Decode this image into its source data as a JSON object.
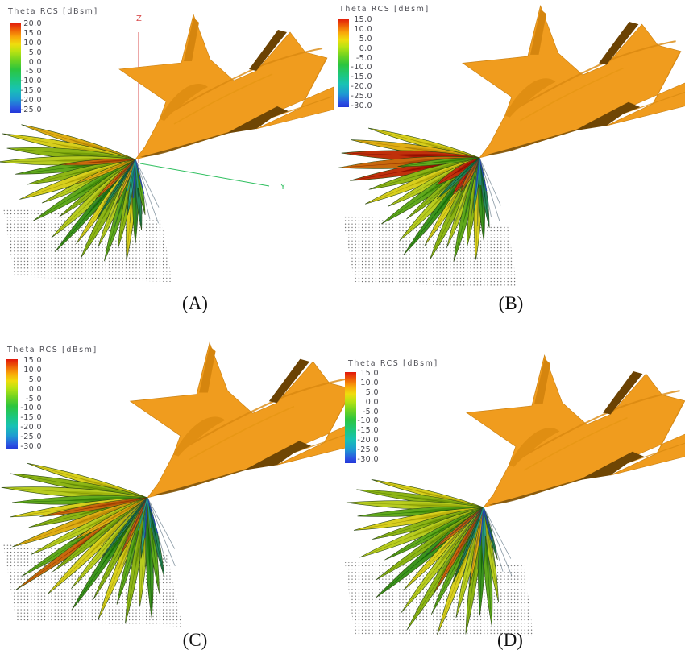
{
  "figure": {
    "background": "#ffffff",
    "description": "Four-panel 3D RCS simulation figure of a fighter aircraft"
  },
  "colorbar": {
    "gradient": [
      "#e1170b 0%",
      "#ee5f07 8%",
      "#f9a80a 16%",
      "#f0dc0d 24%",
      "#b9e312 32%",
      "#6ed321 42%",
      "#2cc53e 52%",
      "#1dc77e 64%",
      "#18c2b4 74%",
      "#1e9ad2 85%",
      "#2b52e2 95%",
      "#2337d8 100%"
    ]
  },
  "colors": {
    "aircraft_orange": "#f09c1e",
    "aircraft_shadow": "#7a4d05",
    "axis_z": "#d94f4f",
    "axis_y": "#2fbf5f",
    "ground_dot": "#5a5a5a"
  },
  "palette": [
    "#b8cc20",
    "#8db515",
    "#60a81c",
    "#3c941d",
    "#d8cf1d",
    "#dfae14",
    "#c8690d",
    "#bf300b",
    "#27865a",
    "#2fa98d"
  ],
  "panels": [
    {
      "id": "A",
      "label": "(A)",
      "legend": {
        "title": "Theta RCS [dBsm]",
        "ticks": [
          "20.0",
          "15.0",
          "10.0",
          "5.0",
          "0.0",
          "-5.0",
          "-10.0",
          "-15.0",
          "-20.0",
          "-25.0"
        ]
      },
      "axis_labels": {
        "z": "Z",
        "y": "Y"
      },
      "scene": {
        "nose": [
          168,
          198
        ],
        "jetScale": 1.0,
        "fanScale": 1.0,
        "axes": true,
        "ground": "4,258 200,272 214,350 18,344",
        "lobes": [
          [
            197,
            148,
            8,
            5
          ],
          [
            191,
            168,
            10,
            4
          ],
          [
            185,
            160,
            12,
            1
          ],
          [
            179,
            170,
            11,
            0
          ],
          [
            173,
            150,
            10,
            2
          ],
          [
            167,
            138,
            10,
            1
          ],
          [
            161,
            152,
            11,
            4
          ],
          [
            155,
            128,
            9,
            0
          ],
          [
            149,
            148,
            10,
            2
          ],
          [
            143,
            118,
            8,
            1
          ],
          [
            137,
            142,
            10,
            0
          ],
          [
            131,
            152,
            9,
            3
          ],
          [
            125,
            128,
            8,
            4
          ],
          [
            119,
            140,
            10,
            1
          ],
          [
            113,
            118,
            8,
            0
          ],
          [
            107,
            132,
            9,
            2
          ],
          [
            101,
            112,
            8,
            1
          ],
          [
            95,
            126,
            9,
            4
          ],
          [
            90,
            104,
            7,
            3
          ],
          [
            85,
            88,
            6,
            8
          ],
          [
            80,
            70,
            5,
            2
          ],
          [
            176,
            95,
            6,
            6
          ],
          [
            158,
            84,
            5,
            5
          ],
          [
            135,
            70,
            5,
            6
          ],
          [
            113,
            60,
            4,
            5
          ],
          [
            123,
            88,
            4,
            8
          ],
          [
            98,
            70,
            4,
            9
          ]
        ],
        "spokes": {
          "from": 64,
          "to": 138,
          "step": 6.2,
          "len": 92,
          "color": "rgba(40,70,90,0.55)"
        },
        "accents": [
          [
            76,
            44,
            "#2344ae"
          ],
          [
            85,
            36,
            "#1d9a8c"
          ],
          [
            93,
            48,
            "#2344ae"
          ],
          [
            104,
            40,
            "#1d9a8c"
          ]
        ]
      }
    },
    {
      "id": "B",
      "label": "(B)",
      "legend": {
        "title": "Theta RCS [dBsm]",
        "ticks": [
          "15.0",
          "10.0",
          "5.0",
          "0.0",
          "-5.0",
          "-10.0",
          "-15.0",
          "-20.0",
          "-25.0",
          "-30.0"
        ]
      },
      "axis_labels": null,
      "scene": {
        "nose": [
          180,
          196
        ],
        "jetScale": 1.05,
        "fanScale": 1.02,
        "axes": false,
        "ground": "10,268 215,280 227,358 25,350",
        "lobes": [
          [
            195,
            140,
            8,
            4
          ],
          [
            188,
            158,
            10,
            5
          ],
          [
            182,
            168,
            12,
            7
          ],
          [
            176,
            172,
            12,
            6
          ],
          [
            170,
            160,
            11,
            7
          ],
          [
            164,
            140,
            10,
            1
          ],
          [
            158,
            150,
            10,
            4
          ],
          [
            152,
            126,
            9,
            0
          ],
          [
            146,
            144,
            10,
            2
          ],
          [
            140,
            116,
            8,
            1
          ],
          [
            134,
            140,
            10,
            0
          ],
          [
            128,
            150,
            9,
            3
          ],
          [
            122,
            126,
            8,
            4
          ],
          [
            116,
            138,
            10,
            1
          ],
          [
            110,
            116,
            8,
            0
          ],
          [
            104,
            130,
            9,
            2
          ],
          [
            98,
            110,
            8,
            1
          ],
          [
            92,
            124,
            9,
            4
          ],
          [
            87,
            102,
            7,
            3
          ],
          [
            82,
            86,
            6,
            8
          ],
          [
            148,
            62,
            9,
            7
          ],
          [
            126,
            56,
            8,
            7
          ],
          [
            119,
            48,
            6,
            6
          ],
          [
            174,
            100,
            6,
            2
          ],
          [
            136,
            72,
            5,
            8
          ],
          [
            96,
            68,
            4,
            9
          ]
        ],
        "spokes": {
          "from": 66,
          "to": 136,
          "step": 6.4,
          "len": 90,
          "color": "rgba(40,70,90,0.55)"
        },
        "accents": [
          [
            78,
            42,
            "#2344ae"
          ],
          [
            88,
            34,
            "#1d9a8c"
          ],
          [
            96,
            46,
            "#2344ae"
          ]
        ]
      }
    },
    {
      "id": "C",
      "label": "(C)",
      "legend": {
        "title": "Theta RCS [dBsm]",
        "ticks": [
          "15.0",
          "10.0",
          "5.0",
          "0.0",
          "-5.0",
          "-10.0",
          "-15.0",
          "-20.0",
          "-25.0",
          "-30.0"
        ]
      },
      "axis_labels": null,
      "scene": {
        "nose": [
          183,
          198
        ],
        "jetScale": 1.07,
        "fanScale": 1.15,
        "axes": false,
        "ground": "4,256 208,268 226,358 20,350",
        "lobes": [
          [
            196,
            135,
            8,
            4
          ],
          [
            190,
            150,
            10,
            1
          ],
          [
            184,
            158,
            11,
            0
          ],
          [
            178,
            146,
            10,
            2
          ],
          [
            172,
            150,
            10,
            4
          ],
          [
            166,
            132,
            9,
            1
          ],
          [
            160,
            155,
            10,
            5
          ],
          [
            154,
            140,
            9,
            0
          ],
          [
            148,
            160,
            10,
            2
          ],
          [
            145,
            174,
            9,
            6
          ],
          [
            142,
            130,
            9,
            1
          ],
          [
            136,
            150,
            10,
            4
          ],
          [
            130,
            128,
            8,
            0
          ],
          [
            124,
            146,
            9,
            3
          ],
          [
            118,
            124,
            8,
            1
          ],
          [
            112,
            142,
            9,
            4
          ],
          [
            106,
            120,
            8,
            2
          ],
          [
            100,
            138,
            9,
            1
          ],
          [
            94,
            118,
            8,
            0
          ],
          [
            88,
            130,
            9,
            3
          ],
          [
            83,
            104,
            7,
            2
          ],
          [
            78,
            88,
            6,
            8
          ],
          [
            170,
            118,
            7,
            6
          ],
          [
            150,
            95,
            6,
            5
          ],
          [
            115,
            70,
            5,
            6
          ],
          [
            127,
            84,
            4,
            8
          ],
          [
            96,
            66,
            4,
            9
          ]
        ],
        "spokes": {
          "from": 62,
          "to": 140,
          "step": 6.0,
          "len": 100,
          "color": "rgba(40,70,90,0.55)"
        },
        "accents": [
          [
            74,
            46,
            "#2344ae"
          ],
          [
            84,
            38,
            "#1d9a8c"
          ],
          [
            94,
            50,
            "#2344ae"
          ],
          [
            106,
            42,
            "#1d9a8c"
          ]
        ]
      }
    },
    {
      "id": "D",
      "label": "(D)",
      "legend": {
        "title": "Theta RCS [dBsm]",
        "ticks": [
          "15.0",
          "10.0",
          "5.0",
          "0.0",
          "-5.0",
          "-10.0",
          "-15.0",
          "-20.0",
          "-25.0",
          "-30.0"
        ]
      },
      "axis_labels": null,
      "scene": {
        "nose": [
          185,
          210
        ],
        "jetScale": 1.05,
        "fanScale": 1.12,
        "axes": false,
        "ground": "13,278 235,280 247,370 25,368",
        "lobes": [
          [
            194,
            128,
            7,
            4
          ],
          [
            188,
            142,
            9,
            1
          ],
          [
            182,
            152,
            10,
            0
          ],
          [
            176,
            140,
            9,
            2
          ],
          [
            170,
            146,
            10,
            4
          ],
          [
            164,
            128,
            9,
            1
          ],
          [
            158,
            148,
            10,
            0
          ],
          [
            152,
            124,
            8,
            2
          ],
          [
            146,
            144,
            9,
            1
          ],
          [
            140,
            156,
            10,
            3
          ],
          [
            134,
            128,
            8,
            4
          ],
          [
            128,
            148,
            9,
            0
          ],
          [
            122,
            160,
            10,
            1
          ],
          [
            116,
            132,
            8,
            2
          ],
          [
            110,
            150,
            9,
            4
          ],
          [
            104,
            126,
            8,
            0
          ],
          [
            98,
            142,
            9,
            1
          ],
          [
            92,
            120,
            8,
            3
          ],
          [
            86,
            132,
            9,
            2
          ],
          [
            81,
            106,
            7,
            0
          ],
          [
            120,
            112,
            6,
            6
          ],
          [
            100,
            90,
            5,
            5
          ],
          [
            140,
            80,
            5,
            6
          ],
          [
            112,
            90,
            4,
            8
          ],
          [
            90,
            70,
            4,
            9
          ],
          [
            75,
            60,
            4,
            8
          ]
        ],
        "spokes": {
          "from": 62,
          "to": 142,
          "step": 5.6,
          "len": 100,
          "color": "rgba(40,70,90,0.55)"
        },
        "accents": [
          [
            76,
            44,
            "#2344ae"
          ],
          [
            86,
            36,
            "#1d9a8c"
          ],
          [
            95,
            48,
            "#2344ae"
          ],
          [
            108,
            40,
            "#1d9a8c"
          ]
        ]
      }
    }
  ]
}
